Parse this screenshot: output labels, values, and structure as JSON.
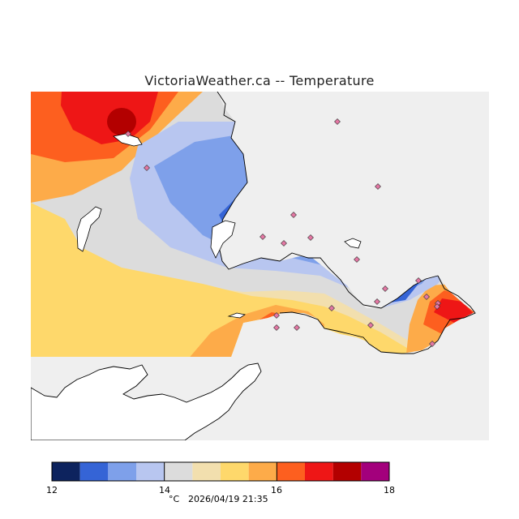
{
  "title": "VictoriaWeather.ca -- Temperature",
  "map": {
    "variable": "Temperature",
    "colors": {
      "background": "#efefef",
      "land": "#ffffff",
      "coastline": "#000000",
      "station_marker": "#e377a3"
    },
    "station_count": 21
  },
  "legend": {
    "bins": [
      {
        "from": 12.0,
        "to": 12.5,
        "color": "#0d235e"
      },
      {
        "from": 12.5,
        "to": 13.0,
        "color": "#3564d6"
      },
      {
        "from": 13.0,
        "to": 13.5,
        "color": "#7ea0ea"
      },
      {
        "from": 13.5,
        "to": 14.0,
        "color": "#b8c6f0"
      },
      {
        "from": 14.0,
        "to": 14.5,
        "color": "#dcdcdc"
      },
      {
        "from": 14.5,
        "to": 15.0,
        "color": "#f2dfae"
      },
      {
        "from": 15.0,
        "to": 15.5,
        "color": "#fed86b"
      },
      {
        "from": 15.5,
        "to": 16.0,
        "color": "#fdab49"
      },
      {
        "from": 16.0,
        "to": 16.5,
        "color": "#fd5f1f"
      },
      {
        "from": 16.5,
        "to": 17.0,
        "color": "#ee1616"
      },
      {
        "from": 17.0,
        "to": 17.5,
        "color": "#b30000"
      },
      {
        "from": 17.5,
        "to": 18.0,
        "color": "#a3007c"
      }
    ],
    "ticks": [
      "12",
      "14",
      "16",
      "18"
    ],
    "unit": "°C",
    "timestamp": "2026/04/19 21:35"
  }
}
